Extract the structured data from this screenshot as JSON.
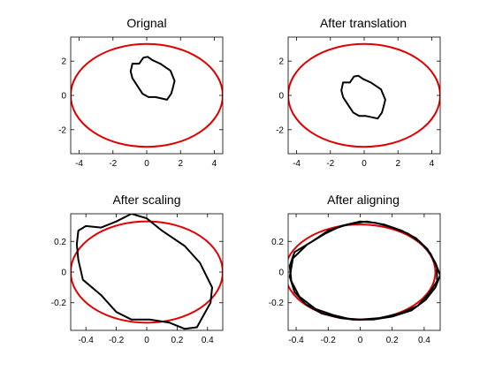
{
  "figure": {
    "background": "#ffffff",
    "axis_color": "#000000"
  },
  "chart_data": [
    {
      "type": "line",
      "title": "Orignal",
      "xlim": [
        -4.5,
        4.5
      ],
      "ylim": [
        -3.4,
        3.4
      ],
      "xticks": [
        -4,
        -2,
        0,
        2,
        4
      ],
      "xtick_labels": [
        "-4",
        "-2",
        "0",
        "2",
        "4"
      ],
      "yticks": [
        -2,
        0,
        2
      ],
      "ytick_labels": [
        "-2",
        "0",
        "2"
      ],
      "series": [
        {
          "kind": "ellipse",
          "color": "#e00000",
          "cx": 0,
          "cy": 0,
          "rx": 4.5,
          "ry": 3.0
        },
        {
          "kind": "closed-curve",
          "color": "#000000",
          "points": [
            [
              -0.85,
              1.85
            ],
            [
              -0.45,
              1.85
            ],
            [
              -0.2,
              2.2
            ],
            [
              0.05,
              2.25
            ],
            [
              0.35,
              2.05
            ],
            [
              0.8,
              1.85
            ],
            [
              1.4,
              1.45
            ],
            [
              1.65,
              0.85
            ],
            [
              1.55,
              0.45
            ],
            [
              1.45,
              0.1
            ],
            [
              1.2,
              -0.25
            ],
            [
              0.75,
              -0.15
            ],
            [
              0.5,
              -0.1
            ],
            [
              0.1,
              -0.1
            ],
            [
              -0.25,
              0.1
            ],
            [
              -0.55,
              0.55
            ],
            [
              -0.85,
              1.0
            ],
            [
              -0.95,
              1.4
            ]
          ]
        }
      ]
    },
    {
      "type": "line",
      "title": "After translation",
      "xlim": [
        -4.5,
        4.5
      ],
      "ylim": [
        -3.4,
        3.4
      ],
      "xticks": [
        -4,
        -2,
        0,
        2,
        4
      ],
      "xtick_labels": [
        "-4",
        "-2",
        "0",
        "2",
        "4"
      ],
      "yticks": [
        -2,
        0,
        2
      ],
      "ytick_labels": [
        "-2",
        "0",
        "2"
      ],
      "series": [
        {
          "kind": "ellipse",
          "color": "#e00000",
          "cx": 0,
          "cy": 0,
          "rx": 4.5,
          "ry": 3.0
        },
        {
          "kind": "closed-curve",
          "color": "#000000",
          "points": [
            [
              -1.25,
              0.75
            ],
            [
              -0.85,
              0.75
            ],
            [
              -0.6,
              1.1
            ],
            [
              -0.35,
              1.15
            ],
            [
              -0.05,
              0.95
            ],
            [
              0.4,
              0.75
            ],
            [
              1.0,
              0.35
            ],
            [
              1.25,
              -0.25
            ],
            [
              1.15,
              -0.65
            ],
            [
              1.05,
              -1.0
            ],
            [
              0.8,
              -1.35
            ],
            [
              0.35,
              -1.25
            ],
            [
              0.1,
              -1.2
            ],
            [
              -0.3,
              -1.2
            ],
            [
              -0.65,
              -1.0
            ],
            [
              -0.95,
              -0.55
            ],
            [
              -1.25,
              -0.1
            ],
            [
              -1.35,
              0.3
            ]
          ]
        }
      ]
    },
    {
      "type": "line",
      "title": "After scaling",
      "xlim": [
        -0.5,
        0.5
      ],
      "ylim": [
        -0.38,
        0.38
      ],
      "xticks": [
        -0.4,
        -0.2,
        0,
        0.2,
        0.4
      ],
      "xtick_labels": [
        "-0.4",
        "-0.2",
        "0",
        "0.2",
        "0.4"
      ],
      "yticks": [
        -0.2,
        0,
        0.2
      ],
      "ytick_labels": [
        "-0.2",
        "0",
        "0.2"
      ],
      "series": [
        {
          "kind": "ellipse",
          "color": "#e00000",
          "cx": 0,
          "cy": 0,
          "rx": 0.5,
          "ry": 0.33
        },
        {
          "kind": "closed-curve",
          "color": "#000000",
          "points": [
            [
              -0.45,
              0.27
            ],
            [
              -0.4,
              0.3
            ],
            [
              -0.3,
              0.29
            ],
            [
              -0.2,
              0.33
            ],
            [
              -0.1,
              0.38
            ],
            [
              0.0,
              0.35
            ],
            [
              0.1,
              0.27
            ],
            [
              0.25,
              0.17
            ],
            [
              0.35,
              0.06
            ],
            [
              0.43,
              -0.1
            ],
            [
              0.42,
              -0.2
            ],
            [
              0.38,
              -0.27
            ],
            [
              0.33,
              -0.36
            ],
            [
              0.25,
              -0.37
            ],
            [
              0.15,
              -0.33
            ],
            [
              0.02,
              -0.31
            ],
            [
              -0.1,
              -0.31
            ],
            [
              -0.2,
              -0.26
            ],
            [
              -0.3,
              -0.15
            ],
            [
              -0.42,
              -0.05
            ],
            [
              -0.45,
              0.08
            ],
            [
              -0.46,
              0.18
            ]
          ]
        }
      ]
    },
    {
      "type": "line",
      "title": "After aligning",
      "xlim": [
        -0.45,
        0.5
      ],
      "ylim": [
        -0.38,
        0.38
      ],
      "xticks": [
        -0.4,
        -0.2,
        0,
        0.2,
        0.4
      ],
      "xtick_labels": [
        "-0.4",
        "-0.2",
        "0",
        "0.2",
        "0.4"
      ],
      "yticks": [
        -0.2,
        0,
        0.2
      ],
      "ytick_labels": [
        "-0.2",
        "0",
        "0.2"
      ],
      "series": [
        {
          "kind": "ellipse",
          "color": "#e00000",
          "cx": 0,
          "cy": 0,
          "rx": 0.47,
          "ry": 0.31
        },
        {
          "kind": "closed-curve",
          "color": "#000000",
          "points": [
            [
              -0.42,
              0.09
            ],
            [
              -0.33,
              0.18
            ],
            [
              -0.22,
              0.25
            ],
            [
              -0.12,
              0.3
            ],
            [
              0.0,
              0.33
            ],
            [
              0.1,
              0.32
            ],
            [
              0.2,
              0.29
            ],
            [
              0.3,
              0.25
            ],
            [
              0.38,
              0.19
            ],
            [
              0.44,
              0.12
            ],
            [
              0.48,
              0.03
            ],
            [
              0.48,
              -0.06
            ],
            [
              0.43,
              -0.14
            ],
            [
              0.36,
              -0.22
            ],
            [
              0.25,
              -0.27
            ],
            [
              0.12,
              -0.3
            ],
            [
              0.0,
              -0.31
            ],
            [
              -0.12,
              -0.3
            ],
            [
              -0.24,
              -0.27
            ],
            [
              -0.34,
              -0.21
            ],
            [
              -0.41,
              -0.13
            ],
            [
              -0.44,
              -0.03
            ]
          ]
        },
        {
          "kind": "closed-curve",
          "color": "#000000",
          "points": [
            [
              -0.41,
              0.13
            ],
            [
              -0.3,
              0.2
            ],
            [
              -0.2,
              0.27
            ],
            [
              -0.08,
              0.31
            ],
            [
              0.04,
              0.33
            ],
            [
              0.15,
              0.31
            ],
            [
              0.26,
              0.27
            ],
            [
              0.35,
              0.22
            ],
            [
              0.42,
              0.15
            ],
            [
              0.47,
              0.06
            ],
            [
              0.5,
              -0.02
            ],
            [
              0.47,
              -0.1
            ],
            [
              0.41,
              -0.18
            ],
            [
              0.32,
              -0.25
            ],
            [
              0.2,
              -0.29
            ],
            [
              0.08,
              -0.31
            ],
            [
              -0.05,
              -0.31
            ],
            [
              -0.17,
              -0.28
            ],
            [
              -0.28,
              -0.24
            ],
            [
              -0.38,
              -0.16
            ],
            [
              -0.43,
              -0.06
            ],
            [
              -0.44,
              0.04
            ]
          ]
        }
      ]
    }
  ]
}
